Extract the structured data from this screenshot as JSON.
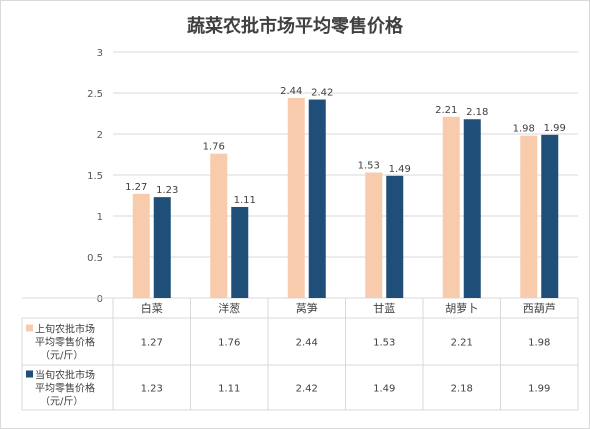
{
  "colors": {
    "series1": "#f8cbad",
    "series2": "#1f4e79",
    "grid": "#d9d9d9"
  },
  "chart_data": {
    "type": "bar",
    "title": "蔬菜农批市场平均零售价格",
    "categories": [
      "白菜",
      "洋葱",
      "莴笋",
      "甘蓝",
      "胡萝卜",
      "西葫芦"
    ],
    "series": [
      {
        "name": "上旬农批市场平均零售价格（元/斤）",
        "name_lines": [
          "上旬农批市场",
          "平均零售价格",
          "（元/斤）"
        ],
        "values": [
          1.27,
          1.76,
          2.44,
          1.53,
          2.21,
          1.98
        ]
      },
      {
        "name": "当旬农批市场平均零售价格（元/斤）",
        "name_lines": [
          "当旬农批市场",
          "平均零售价格",
          "（元/斤）"
        ],
        "values": [
          1.23,
          1.11,
          2.42,
          1.49,
          2.18,
          1.99
        ]
      }
    ],
    "ylim": [
      0,
      3
    ],
    "yticks": [
      "0",
      "0.5",
      "1",
      "1.5",
      "2",
      "2.5",
      "3"
    ],
    "grid": true,
    "legend": "data-table"
  }
}
